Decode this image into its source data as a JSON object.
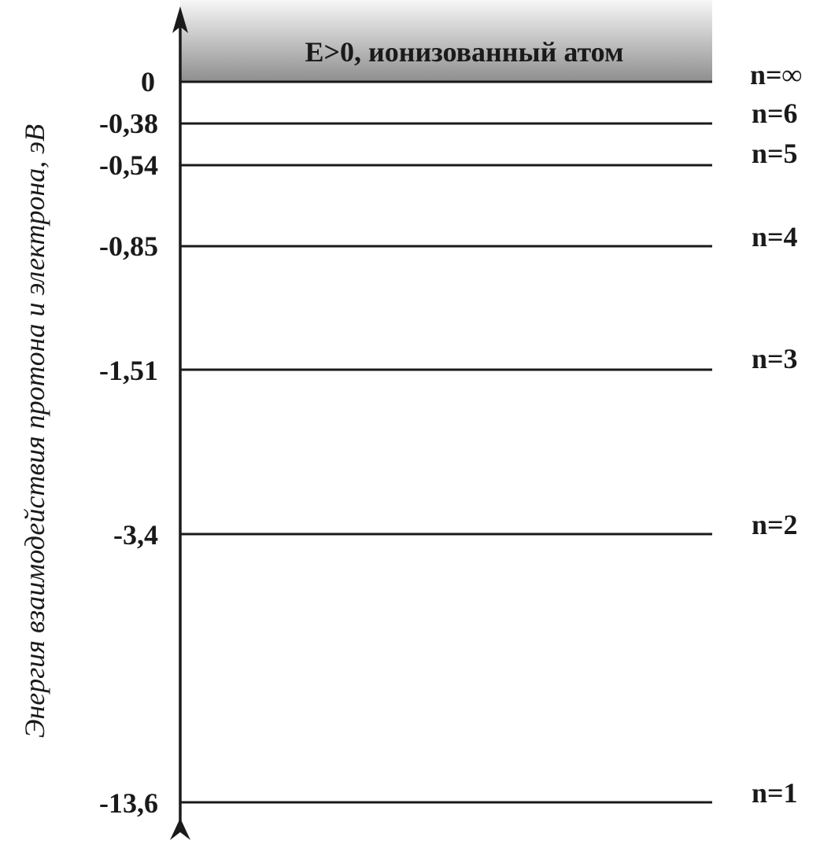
{
  "axis_title": "Энергия взаимодействия протона и электрона, эВ",
  "ionized_region_label": "E>0, ионизованный атом",
  "colors": {
    "ink": "#1a1a1a",
    "region_top": "#f7f7f7",
    "region_bottom": "#8e8e8e"
  },
  "levels": [
    {
      "energy_label": "0",
      "n_label": "n=∞"
    },
    {
      "energy_label": "-0,38",
      "n_label": "n=6"
    },
    {
      "energy_label": "-0,54",
      "n_label": "n=5"
    },
    {
      "energy_label": "-0,85",
      "n_label": "n=4"
    },
    {
      "energy_label": "-1,51",
      "n_label": "n=3"
    },
    {
      "energy_label": "-3,4",
      "n_label": "n=2"
    },
    {
      "energy_label": "-13,6",
      "n_label": "n=1"
    }
  ]
}
